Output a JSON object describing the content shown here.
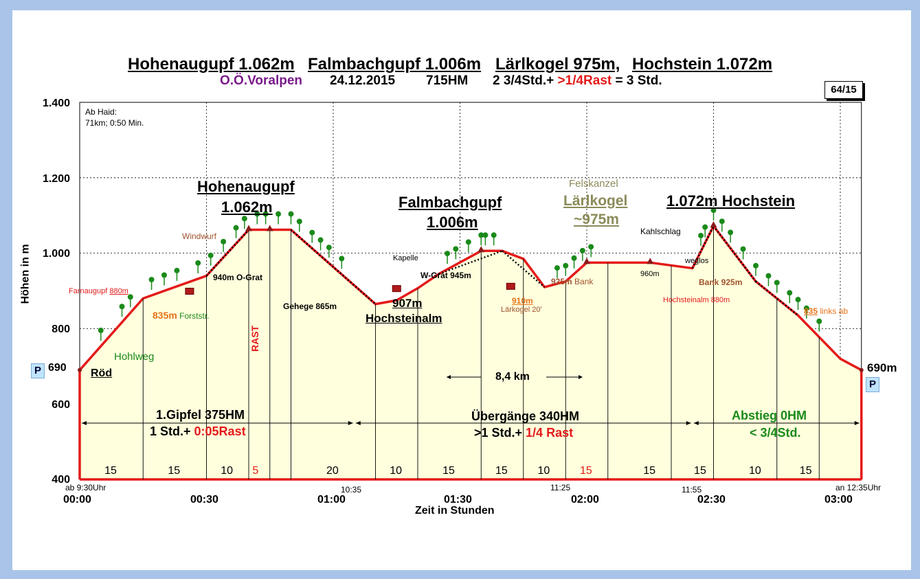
{
  "header": {
    "peak1": "Hohenaugupf 1.062m",
    "peak2": "Falmbachgupf 1.006m",
    "peak3": "Lärlkogel 975m,",
    "peak4": "Hochstein 1.072m",
    "region": "O.Ö.Voralpen",
    "date": "24.12.2015",
    "ascent": "715HM",
    "time_a": "2 3/4Std.+",
    "time_b": ">1/4Rast",
    "time_c": "= 3 Std.",
    "badge": "64/15"
  },
  "note": {
    "line1": "Ab Haid:",
    "line2": "71km; 0:50 Min."
  },
  "parking": {
    "left": "P",
    "right": "P",
    "left_value": "690",
    "right_value": "690m"
  },
  "summits": {
    "s1_name": "Hohenaugupf",
    "s1_alt": "1.062m",
    "s2_name": "Falmbachgupf",
    "s2_alt": "1.006m",
    "s3_pre": "Felskanzel",
    "s3_name": "Lärlkogel",
    "s3_alt": "~975m",
    "s4": "1.072m Hochstein"
  },
  "labels": {
    "windwurf": "Windwurf",
    "farnaugupf_a": "Farnaugupf ",
    "farnaugupf_b": "880m",
    "forst_a": "835m",
    "forst_b": " Forststr.",
    "ograt": "940m O-Grat",
    "hohlweg": "Hohlweg",
    "roed": "Röd",
    "rast": "RAST",
    "gehege": "Gehege  865m",
    "hochsteinalm_alt": "907m",
    "hochsteinalm": "Hochsteinalm",
    "kapelle": "Kapelle",
    "wgrat": "W-Grat 945m",
    "l910": "910m",
    "l910b": "Lärkogel 20'",
    "bank925_a": "925m",
    "bank925_b": " Bank",
    "m960": "960m",
    "kahlschlag": "Kahlschlag",
    "weglos": "weglos",
    "bank925r": "Bank 925m",
    "hsa880": "Hochsteinalm 880m",
    "l835_a": "835",
    "l835_b": " links  ab",
    "dist": "8,4 km"
  },
  "sections": {
    "s1_a": "1.Gipfel 375HM",
    "s1_b": "1 Std.+ ",
    "s1_c": "0:05Rast",
    "s2_a": "Übergänge 340HM",
    "s2_b": ">1 Std.+ ",
    "s2_c": "1/4 Rast",
    "s3_a": "Abstieg 0HM",
    "s3_b": "< 3/4Std."
  },
  "axes": {
    "ylabel": "Höhen in m",
    "xlabel": "Zeit in Stunden",
    "yticks": [
      "1.400",
      "1.200",
      "1.000",
      "800",
      "600",
      "400"
    ],
    "xticks": [
      "00:00",
      "00:30",
      "01:00",
      "01:30",
      "02:00",
      "02:30",
      "03:00"
    ],
    "start_time": "ab 9:30Uhr",
    "end_time": "an 12:35Uhr",
    "t1035": "10:35",
    "t1125": "11:25",
    "t1155": "11:55"
  },
  "segment_minutes": [
    "15",
    "15",
    "10",
    "5",
    "20",
    "10",
    "15",
    "15",
    "10",
    "15",
    "15",
    "15",
    "10",
    "15"
  ],
  "colors": {
    "profile": "#e41a1a",
    "fill": "#ffffdd",
    "forest": "#1a8a1a",
    "heading_purple": "#7a1a8a",
    "brown": "#a0522d",
    "orange": "#e8731a",
    "olive": "#8b8b5a"
  },
  "chart_data": {
    "type": "area",
    "title": "Hohenaugupf 1.062m  Falmbachgupf 1.006m  Lärlkogel 975m, Hochstein 1.072m",
    "xlabel": "Zeit in Stunden",
    "ylabel": "Höhen in m",
    "ylim": [
      400,
      1400
    ],
    "xlim": [
      "00:00",
      "03:05"
    ],
    "grid": true,
    "x_minutes": [
      0,
      15,
      30,
      40,
      45,
      50,
      70,
      75,
      80,
      85,
      95,
      100,
      105,
      110,
      115,
      120,
      125,
      135,
      145,
      150,
      160,
      170,
      180,
      185,
      185
    ],
    "y": [
      690,
      880,
      940,
      1062,
      1062,
      1062,
      865,
      875,
      907,
      945,
      1006,
      1006,
      985,
      910,
      925,
      975,
      975,
      975,
      960,
      1072,
      925,
      835,
      720,
      690,
      400
    ]
  }
}
